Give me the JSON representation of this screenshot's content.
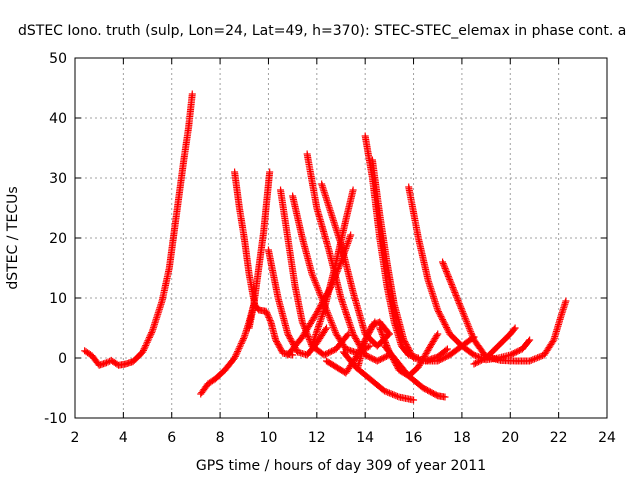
{
  "chart_data": {
    "type": "scatter",
    "title": "dSTEC Iono. truth (sulp, Lon=24, Lat=49, h=370): STEC-STEC_elemax in phase cont. a",
    "xlabel": "GPS time / hours of day 309 of year 2011",
    "ylabel": "dSTEC  / TECUs",
    "xlim": [
      2,
      24
    ],
    "ylim": [
      -10,
      50
    ],
    "xticks": [
      2,
      4,
      6,
      8,
      10,
      12,
      14,
      16,
      18,
      20,
      22,
      24
    ],
    "yticks": [
      -10,
      0,
      10,
      20,
      30,
      40,
      50
    ],
    "grid": true,
    "marker": "plus",
    "colors": {
      "series": "#ff0000",
      "grid": "#a0a0a0",
      "axis": "#000000"
    },
    "series": [
      {
        "points": [
          [
            2.4,
            1.2
          ],
          [
            2.7,
            0.4
          ],
          [
            3.0,
            -1.2
          ],
          [
            3.3,
            -0.8
          ],
          [
            3.5,
            -0.4
          ],
          [
            3.8,
            -1.2
          ],
          [
            4.1,
            -1.0
          ],
          [
            4.4,
            -0.6
          ],
          [
            4.8,
            1.0
          ],
          [
            5.2,
            4.5
          ],
          [
            5.6,
            9.5
          ],
          [
            5.9,
            15.0
          ],
          [
            6.1,
            21.0
          ],
          [
            6.3,
            27.0
          ],
          [
            6.5,
            33.0
          ],
          [
            6.7,
            38.5
          ],
          [
            6.85,
            44.0
          ]
        ]
      },
      {
        "points": [
          [
            7.2,
            -6.0
          ],
          [
            7.5,
            -4.3
          ],
          [
            7.8,
            -3.5
          ],
          [
            8.2,
            -2.0
          ],
          [
            8.6,
            0.0
          ],
          [
            9.0,
            3.5
          ],
          [
            9.2,
            6.0
          ],
          [
            9.4,
            9.0
          ],
          [
            9.6,
            8.0
          ],
          [
            9.9,
            7.8
          ],
          [
            10.1,
            6.0
          ],
          [
            10.3,
            3.0
          ],
          [
            10.6,
            0.8
          ],
          [
            11.0,
            0.5
          ]
        ]
      },
      {
        "points": [
          [
            8.6,
            31.0
          ],
          [
            8.8,
            25.0
          ],
          [
            9.0,
            20.0
          ],
          [
            9.2,
            14.0
          ],
          [
            9.45,
            8.5
          ]
        ]
      },
      {
        "points": [
          [
            9.2,
            5.0
          ],
          [
            9.4,
            9.0
          ],
          [
            9.6,
            15.0
          ],
          [
            9.8,
            21.0
          ],
          [
            9.95,
            27.0
          ],
          [
            10.05,
            31.0
          ]
        ]
      },
      {
        "points": [
          [
            10.0,
            18.0
          ],
          [
            10.4,
            10.0
          ],
          [
            10.8,
            4.0
          ],
          [
            11.2,
            1.0
          ],
          [
            11.6,
            0.5
          ],
          [
            12.0,
            2.5
          ],
          [
            12.4,
            5.0
          ]
        ]
      },
      {
        "points": [
          [
            10.5,
            28.0
          ],
          [
            10.8,
            20.0
          ],
          [
            11.1,
            12.0
          ],
          [
            11.4,
            6.0
          ],
          [
            11.8,
            2.0
          ],
          [
            12.3,
            0.5
          ],
          [
            12.8,
            1.5
          ],
          [
            13.3,
            4.0
          ]
        ]
      },
      {
        "points": [
          [
            11.0,
            27.0
          ],
          [
            11.4,
            20.0
          ],
          [
            11.8,
            14.0
          ],
          [
            12.3,
            9.0
          ],
          [
            12.8,
            4.0
          ],
          [
            13.2,
            1.5
          ],
          [
            13.7,
            0.8
          ],
          [
            14.2,
            2.0
          ]
        ]
      },
      {
        "points": [
          [
            11.6,
            34.0
          ],
          [
            12.0,
            25.0
          ],
          [
            12.5,
            18.0
          ],
          [
            13.0,
            10.0
          ],
          [
            13.5,
            4.0
          ],
          [
            14.0,
            0.5
          ],
          [
            14.5,
            -0.5
          ],
          [
            15.0,
            0.5
          ]
        ]
      },
      {
        "points": [
          [
            12.2,
            29.0
          ],
          [
            12.6,
            24.0
          ],
          [
            13.0,
            19.0
          ],
          [
            13.5,
            11.0
          ],
          [
            14.0,
            4.0
          ],
          [
            14.5,
            2.0
          ],
          [
            15.0,
            4.0
          ]
        ]
      },
      {
        "points": [
          [
            10.8,
            0.5
          ],
          [
            11.4,
            3.5
          ],
          [
            12.0,
            7.5
          ],
          [
            12.6,
            12.0
          ],
          [
            13.0,
            16.0
          ],
          [
            13.4,
            20.5
          ]
        ]
      },
      {
        "points": [
          [
            11.8,
            2.0
          ],
          [
            12.3,
            8.0
          ],
          [
            12.8,
            16.0
          ],
          [
            13.2,
            23.0
          ],
          [
            13.5,
            28.0
          ]
        ]
      },
      {
        "points": [
          [
            12.4,
            -0.5
          ],
          [
            12.8,
            -1.5
          ],
          [
            13.2,
            -2.5
          ],
          [
            13.6,
            0.0
          ],
          [
            14.0,
            3.0
          ],
          [
            14.4,
            6.0
          ]
        ]
      },
      {
        "points": [
          [
            13.7,
            -1.5
          ],
          [
            14.0,
            3.0
          ],
          [
            14.3,
            5.5
          ],
          [
            14.6,
            6.0
          ],
          [
            15.0,
            4.0
          ]
        ]
      },
      {
        "points": [
          [
            14.0,
            37.0
          ],
          [
            14.3,
            30.0
          ],
          [
            14.6,
            20.0
          ],
          [
            14.9,
            12.0
          ],
          [
            15.2,
            6.0
          ],
          [
            15.5,
            2.0
          ],
          [
            15.8,
            0.5
          ],
          [
            16.2,
            0.0
          ]
        ]
      },
      {
        "points": [
          [
            14.3,
            33.0
          ],
          [
            14.6,
            24.0
          ],
          [
            14.9,
            16.0
          ],
          [
            15.2,
            9.0
          ],
          [
            15.6,
            3.0
          ],
          [
            16.0,
            0.0
          ],
          [
            16.5,
            -0.5
          ],
          [
            17.0,
            0.2
          ],
          [
            17.4,
            1.5
          ]
        ]
      },
      {
        "points": [
          [
            13.1,
            1.0
          ],
          [
            13.6,
            -1.5
          ],
          [
            14.2,
            -3.5
          ],
          [
            14.8,
            -5.5
          ],
          [
            15.4,
            -6.5
          ],
          [
            16.0,
            -7.0
          ]
        ]
      },
      {
        "points": [
          [
            14.8,
            2.0
          ],
          [
            15.3,
            -0.5
          ],
          [
            15.8,
            -3.0
          ],
          [
            16.4,
            -5.0
          ],
          [
            17.0,
            -6.3
          ],
          [
            17.3,
            -6.5
          ]
        ]
      },
      {
        "points": [
          [
            14.6,
            5.0
          ],
          [
            15.0,
            1.0
          ],
          [
            15.4,
            -2.0
          ],
          [
            15.8,
            -3.0
          ],
          [
            16.2,
            -1.5
          ],
          [
            16.7,
            2.0
          ],
          [
            17.0,
            4.0
          ]
        ]
      },
      {
        "points": [
          [
            15.8,
            28.5
          ],
          [
            16.2,
            20.0
          ],
          [
            16.6,
            13.0
          ],
          [
            17.0,
            8.0
          ],
          [
            17.5,
            4.0
          ],
          [
            18.0,
            2.0
          ],
          [
            18.5,
            0.5
          ],
          [
            19.0,
            -0.3
          ],
          [
            19.5,
            0.0
          ],
          [
            20.0,
            0.5
          ],
          [
            20.5,
            1.5
          ],
          [
            20.8,
            3.0
          ]
        ]
      },
      {
        "points": [
          [
            17.2,
            16.0
          ],
          [
            17.6,
            12.0
          ],
          [
            18.0,
            8.0
          ],
          [
            18.5,
            3.0
          ],
          [
            19.0,
            0.2
          ],
          [
            19.6,
            -0.4
          ],
          [
            20.2,
            -0.5
          ],
          [
            20.8,
            -0.5
          ],
          [
            21.4,
            0.5
          ],
          [
            21.8,
            3.0
          ],
          [
            22.1,
            7.0
          ],
          [
            22.3,
            9.5
          ]
        ]
      },
      {
        "points": [
          [
            16.5,
            -0.5
          ],
          [
            17.0,
            -0.5
          ],
          [
            17.5,
            0.5
          ],
          [
            18.0,
            2.0
          ],
          [
            18.5,
            3.5
          ]
        ]
      },
      {
        "points": [
          [
            18.5,
            -1.0
          ],
          [
            19.0,
            0.0
          ],
          [
            19.5,
            2.0
          ],
          [
            20.0,
            4.0
          ],
          [
            20.2,
            5.0
          ]
        ]
      }
    ]
  }
}
